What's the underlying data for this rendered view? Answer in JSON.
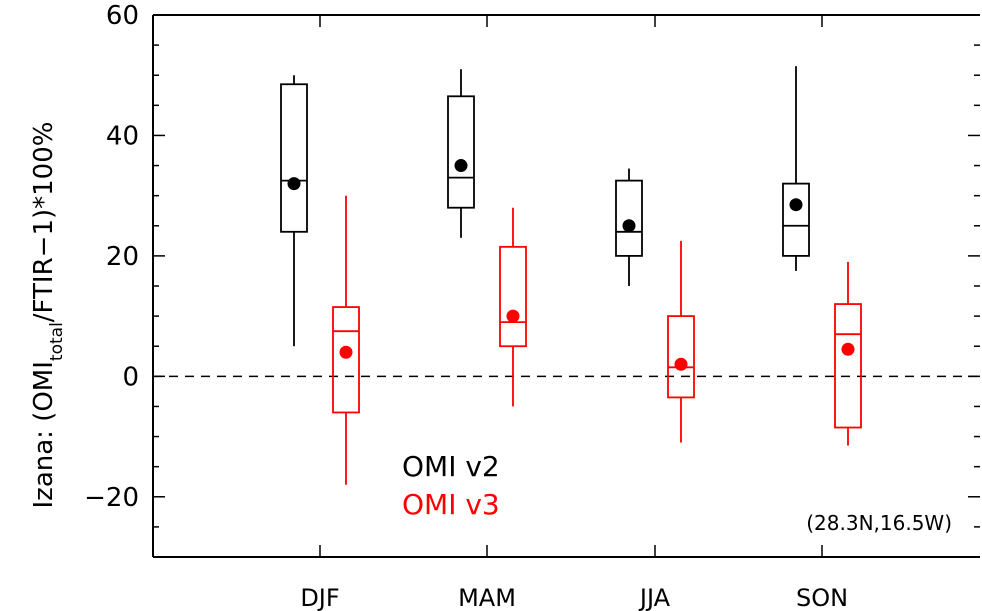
{
  "chart_data": {
    "type": "box",
    "ylabel": {
      "prefix": "Izana:  (OMI",
      "sub": "total",
      "suffix": "/FTIR−1)*100%"
    },
    "categories": [
      "DJF",
      "MAM",
      "JJA",
      "SON"
    ],
    "ylim": [
      -30,
      60
    ],
    "yticks": [
      -20,
      0,
      20,
      40,
      60
    ],
    "ytick_labels": [
      "−20",
      "0",
      "20",
      "40",
      "60"
    ],
    "yminor_step": 5,
    "reference_line": 0,
    "annotation": "(28.3N,16.5W)",
    "series": [
      {
        "name": "OMI v2",
        "color": "#000000",
        "boxes": [
          {
            "whisker_low": 5,
            "q1": 24,
            "median": 32.5,
            "q3": 48.5,
            "whisker_high": 50,
            "mean": 32
          },
          {
            "whisker_low": 23,
            "q1": 28,
            "median": 33,
            "q3": 46.5,
            "whisker_high": 51,
            "mean": 35
          },
          {
            "whisker_low": 15,
            "q1": 20,
            "median": 24,
            "q3": 32.5,
            "whisker_high": 34.5,
            "mean": 25
          },
          {
            "whisker_low": 17.5,
            "q1": 20,
            "median": 25,
            "q3": 32,
            "whisker_high": 51.5,
            "mean": 28.5
          }
        ]
      },
      {
        "name": "OMI v3",
        "color": "#ff0000",
        "boxes": [
          {
            "whisker_low": -18,
            "q1": -6,
            "median": 7.5,
            "q3": 11.5,
            "whisker_high": 30,
            "mean": 4
          },
          {
            "whisker_low": -5,
            "q1": 5,
            "median": 9,
            "q3": 21.5,
            "whisker_high": 28,
            "mean": 10
          },
          {
            "whisker_low": -11,
            "q1": -3.5,
            "median": 1.5,
            "q3": 10,
            "whisker_high": 22.5,
            "mean": 2
          },
          {
            "whisker_low": -11.5,
            "q1": -8.5,
            "median": 7,
            "q3": 12,
            "whisker_high": 19,
            "mean": 4.5
          }
        ]
      }
    ]
  }
}
